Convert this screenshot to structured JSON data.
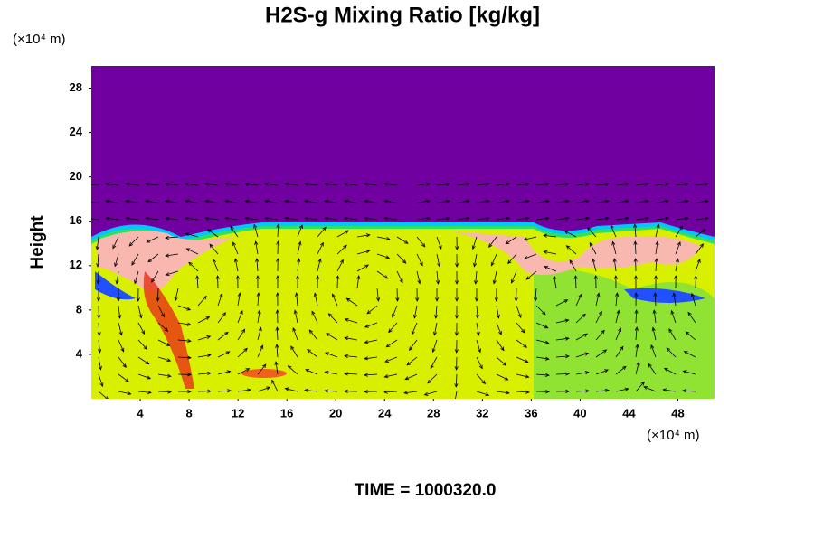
{
  "chart_data": {
    "type": "field",
    "title": "H2S-g Mixing Ratio [kg/kg]",
    "y_label": "Height",
    "y_unit": "(×10⁴ m)",
    "x_unit": "(×10⁴ m)",
    "time_label": "TIME = 1000320.0",
    "xlim": [
      0,
      51
    ],
    "xticks": [
      4,
      8,
      12,
      16,
      20,
      24,
      28,
      32,
      36,
      40,
      44,
      48
    ],
    "ylim": [
      0,
      30
    ],
    "yticks": [
      4,
      8,
      12,
      16,
      20,
      24,
      28
    ]
  }
}
